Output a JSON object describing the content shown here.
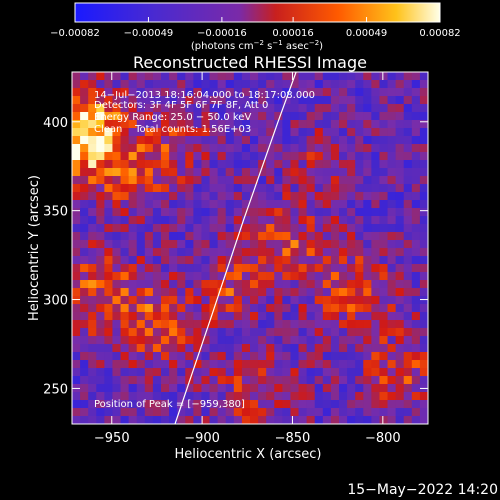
{
  "chart_data": {
    "type": "heatmap",
    "title": "Reconstructed RHESSI Image",
    "xlabel": "Heliocentric X (arcsec)",
    "ylabel": "Heliocentric Y (arcsec)",
    "xlim": [
      -972,
      -775
    ],
    "ylim": [
      230,
      428
    ],
    "x_ticks": [
      -950,
      -900,
      -850,
      -800
    ],
    "x_tick_labels": [
      "−950",
      "−900",
      "−850",
      "−800"
    ],
    "y_ticks": [
      250,
      300,
      350,
      400
    ],
    "y_tick_labels": [
      "250",
      "300",
      "350",
      "400"
    ],
    "colorbar": {
      "colormap": "blue-purple-red-orange-yellow-white",
      "range": [
        -0.00082,
        0.00082
      ],
      "tick_values": [
        -0.00082,
        -0.00049,
        -0.00016,
        0.00016,
        0.00049,
        0.00082
      ],
      "tick_labels": [
        "−0.00082",
        "−0.00049",
        "−0.00016",
        "0.00016",
        "0.00049",
        "0.00082"
      ],
      "unit_prefix": "(photons cm",
      "unit_exp1": "−2",
      "unit_mid": " s",
      "unit_exp2": "−1",
      "unit_mid2": " asec",
      "unit_exp3": "−2",
      "unit_suffix": ")"
    },
    "limb_curve": [
      [
        -915,
        230
      ],
      [
        -895,
        290
      ],
      [
        -877,
        345
      ],
      [
        -858,
        400
      ],
      [
        -848,
        428
      ]
    ],
    "peak": {
      "x": -959,
      "y": 380
    },
    "grid": false
  },
  "info": {
    "time_range": "14−Jul−2013 18:16:04.000 to 18:17:08.000",
    "detectors": "Detectors: 3F 4F 5F 6F 7F 8F, Att 0",
    "energy_range": "Energy Range: 25.0 − 50.0 keV",
    "algorithm": "Clean    Total counts: 1.56E+03",
    "peak_position": "Position of Peak = [−959,380]"
  },
  "footer": {
    "date_stamp": "15−May−2022 14:20"
  },
  "colors": {
    "background": "#000000",
    "foreground": "#ffffff"
  }
}
